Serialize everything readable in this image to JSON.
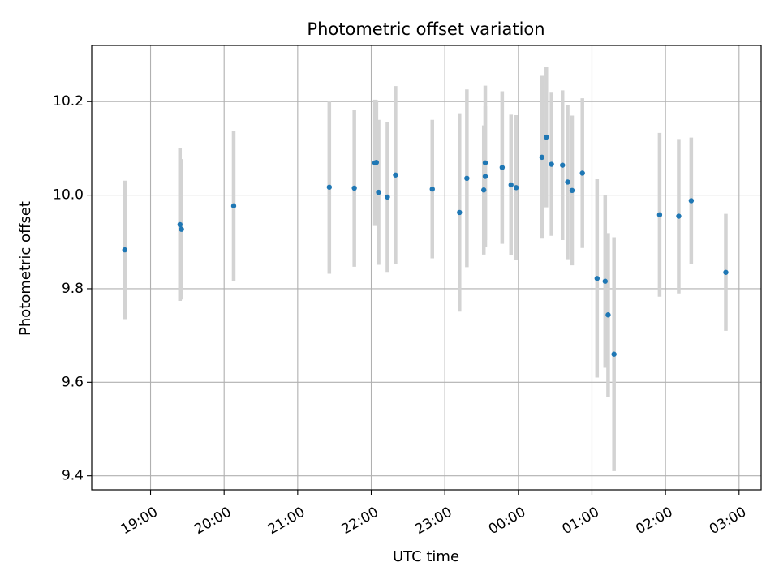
{
  "chart_data": {
    "type": "scatter",
    "title": "Photometric offset variation",
    "xlabel": "UTC time",
    "ylabel": "Photometric offset",
    "x_unit": "hours (UTC, continuous; values above 24 are after midnight)",
    "xlim": [
      18.2,
      27.3
    ],
    "ylim": [
      9.37,
      10.32
    ],
    "grid": true,
    "x_ticks": [
      {
        "value": 19,
        "label": "19:00"
      },
      {
        "value": 20,
        "label": "20:00"
      },
      {
        "value": 21,
        "label": "21:00"
      },
      {
        "value": 22,
        "label": "22:00"
      },
      {
        "value": 23,
        "label": "23:00"
      },
      {
        "value": 24,
        "label": "00:00"
      },
      {
        "value": 25,
        "label": "01:00"
      },
      {
        "value": 26,
        "label": "02:00"
      },
      {
        "value": 27,
        "label": "03:00"
      }
    ],
    "y_ticks": [
      {
        "value": 9.4,
        "label": "9.4"
      },
      {
        "value": 9.6,
        "label": "9.6"
      },
      {
        "value": 9.8,
        "label": "9.8"
      },
      {
        "value": 10.0,
        "label": "10.0"
      },
      {
        "value": 10.2,
        "label": "10.2"
      }
    ],
    "colors": {
      "marker": "#1f77b4",
      "errorbar": "#d3d3d3",
      "grid": "#b0b0b0"
    },
    "points": [
      {
        "x": 18.65,
        "y": 9.883,
        "err": 0.148
      },
      {
        "x": 19.4,
        "y": 9.937,
        "err": 0.163
      },
      {
        "x": 19.42,
        "y": 9.927,
        "err": 0.15
      },
      {
        "x": 20.13,
        "y": 9.977,
        "err": 0.16
      },
      {
        "x": 21.43,
        "y": 10.017,
        "err": 0.185
      },
      {
        "x": 21.77,
        "y": 10.015,
        "err": 0.168
      },
      {
        "x": 22.05,
        "y": 10.069,
        "err": 0.135
      },
      {
        "x": 22.07,
        "y": 10.07,
        "err": 0.133
      },
      {
        "x": 22.1,
        "y": 10.006,
        "err": 0.155
      },
      {
        "x": 22.22,
        "y": 9.996,
        "err": 0.16
      },
      {
        "x": 22.33,
        "y": 10.043,
        "err": 0.19
      },
      {
        "x": 22.83,
        "y": 10.013,
        "err": 0.148
      },
      {
        "x": 23.2,
        "y": 9.963,
        "err": 0.212
      },
      {
        "x": 23.3,
        "y": 10.036,
        "err": 0.19
      },
      {
        "x": 23.53,
        "y": 10.011,
        "err": 0.138
      },
      {
        "x": 23.55,
        "y": 10.04,
        "err": 0.15
      },
      {
        "x": 23.55,
        "y": 10.069,
        "err": 0.165
      },
      {
        "x": 23.78,
        "y": 10.059,
        "err": 0.163
      },
      {
        "x": 23.9,
        "y": 10.022,
        "err": 0.15
      },
      {
        "x": 23.97,
        "y": 10.016,
        "err": 0.155
      },
      {
        "x": 24.32,
        "y": 10.081,
        "err": 0.174
      },
      {
        "x": 24.38,
        "y": 10.124,
        "err": 0.15
      },
      {
        "x": 24.45,
        "y": 10.066,
        "err": 0.153
      },
      {
        "x": 24.6,
        "y": 10.064,
        "err": 0.16
      },
      {
        "x": 24.67,
        "y": 10.028,
        "err": 0.165
      },
      {
        "x": 24.73,
        "y": 10.01,
        "err": 0.16
      },
      {
        "x": 24.87,
        "y": 10.047,
        "err": 0.16
      },
      {
        "x": 25.07,
        "y": 9.822,
        "err": 0.212
      },
      {
        "x": 25.18,
        "y": 9.816,
        "err": 0.185
      },
      {
        "x": 25.22,
        "y": 9.744,
        "err": 0.175
      },
      {
        "x": 25.3,
        "y": 9.66,
        "err": 0.25
      },
      {
        "x": 25.92,
        "y": 9.958,
        "err": 0.175
      },
      {
        "x": 26.18,
        "y": 9.955,
        "err": 0.165
      },
      {
        "x": 26.35,
        "y": 9.988,
        "err": 0.135
      },
      {
        "x": 26.82,
        "y": 9.835,
        "err": 0.125
      }
    ]
  }
}
